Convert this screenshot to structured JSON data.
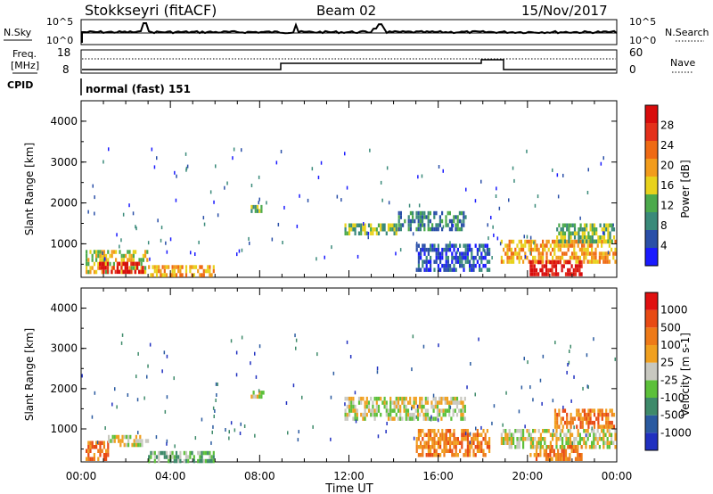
{
  "header": {
    "station": "Stokkseyri (fitACF)",
    "beam": "Beam 02",
    "date": "15/Nov/2017"
  },
  "colors": {
    "power_scale": [
      "#1a1aff",
      "#2a4fa8",
      "#3a8a7a",
      "#4caa4c",
      "#e8d21c",
      "#f29c1c",
      "#ef6a14",
      "#e4301a",
      "#d80c0c"
    ],
    "velocity_scale": [
      "#2030c0",
      "#2a5aa0",
      "#3e8a6a",
      "#5cc03a",
      "#c8c8c0",
      "#f0a020",
      "#ee7a18",
      "#e84a14",
      "#e01010"
    ]
  },
  "noise_panel": {
    "left_label": "N.Sky",
    "right_label": "N.Search",
    "left_ticks": [
      "10^5",
      "10^0"
    ],
    "right_ticks": [
      "10^5",
      "10^0"
    ]
  },
  "freq_panel": {
    "left_label_1": "Freq.",
    "left_label_2": "[MHz]",
    "right_label": "Nave",
    "left_ticks": [
      "18",
      "8"
    ],
    "right_ticks": [
      "60",
      "0"
    ],
    "cpid_label": "CPID",
    "cpid_value": "normal (fast) 151"
  },
  "chart_data": [
    {
      "type": "heatmap",
      "quantity": "Power",
      "ylabel": "Slant Range [km]",
      "ylim": [
        180,
        4500
      ],
      "yticks": [
        "1000",
        "2000",
        "3000",
        "4000"
      ],
      "xlim_hours": [
        0,
        24
      ],
      "xticks": [
        "00:00",
        "04:00",
        "08:00",
        "12:00",
        "16:00",
        "20:00",
        "00:00"
      ],
      "colorbar_label": "Power [dB]",
      "colorbar_ticks": [
        "28",
        "24",
        "20",
        "16",
        "12",
        "8",
        "4"
      ],
      "regions": [
        {
          "t0": 0.2,
          "t1": 3.0,
          "r0": 300,
          "r1": 850,
          "level": 4
        },
        {
          "t0": 0.8,
          "t1": 2.8,
          "r0": 330,
          "r1": 560,
          "level": 8
        },
        {
          "t0": 3.0,
          "t1": 5.9,
          "r0": 250,
          "r1": 480,
          "level": 5
        },
        {
          "t0": 7.6,
          "t1": 8.2,
          "r0": 1850,
          "r1": 1950,
          "level": 3
        },
        {
          "t0": 11.8,
          "t1": 14.2,
          "r0": 1300,
          "r1": 1500,
          "level": 3
        },
        {
          "t0": 14.2,
          "t1": 17.2,
          "r0": 1400,
          "r1": 1800,
          "level": 2
        },
        {
          "t0": 15.0,
          "t1": 18.3,
          "r0": 400,
          "r1": 1000,
          "level": 1
        },
        {
          "t0": 18.8,
          "t1": 23.9,
          "r0": 600,
          "r1": 1100,
          "level": 5
        },
        {
          "t0": 20.1,
          "t1": 22.4,
          "r0": 300,
          "r1": 600,
          "level": 8
        },
        {
          "t0": 21.2,
          "t1": 23.9,
          "r0": 1100,
          "r1": 1500,
          "level": 3
        }
      ]
    },
    {
      "type": "heatmap",
      "quantity": "Velocity",
      "ylabel": "Slant Range [km]",
      "ylim": [
        180,
        4500
      ],
      "yticks": [
        "1000",
        "2000",
        "3000",
        "4000"
      ],
      "xlim_hours": [
        0,
        24
      ],
      "xticks": [
        "00:00",
        "04:00",
        "08:00",
        "12:00",
        "16:00",
        "20:00",
        "00:00"
      ],
      "xlabel": "Time UT",
      "colorbar_label": "Velocity [m s-1]",
      "colorbar_ticks": [
        "1000",
        "500",
        "100",
        "25",
        "-25",
        "-100",
        "-500",
        "-1000"
      ],
      "regions": [
        {
          "t0": 0.2,
          "t1": 1.2,
          "r0": 250,
          "r1": 700,
          "level": 6
        },
        {
          "t0": 1.2,
          "t1": 3.0,
          "r0": 600,
          "r1": 850,
          "level": 4
        },
        {
          "t0": 3.0,
          "t1": 5.9,
          "r0": 200,
          "r1": 450,
          "level": 3
        },
        {
          "t0": 7.6,
          "t1": 8.2,
          "r0": 1850,
          "r1": 1950,
          "level": 4
        },
        {
          "t0": 11.8,
          "t1": 17.2,
          "r0": 1300,
          "r1": 1800,
          "level": 4
        },
        {
          "t0": 15.0,
          "t1": 18.3,
          "r0": 400,
          "r1": 1000,
          "level": 6
        },
        {
          "t0": 18.8,
          "t1": 23.9,
          "r0": 600,
          "r1": 1000,
          "level": 4
        },
        {
          "t0": 20.1,
          "t1": 22.4,
          "r0": 250,
          "r1": 600,
          "level": 6
        },
        {
          "t0": 21.2,
          "t1": 23.9,
          "r0": 1100,
          "r1": 1500,
          "level": 6
        }
      ]
    }
  ]
}
